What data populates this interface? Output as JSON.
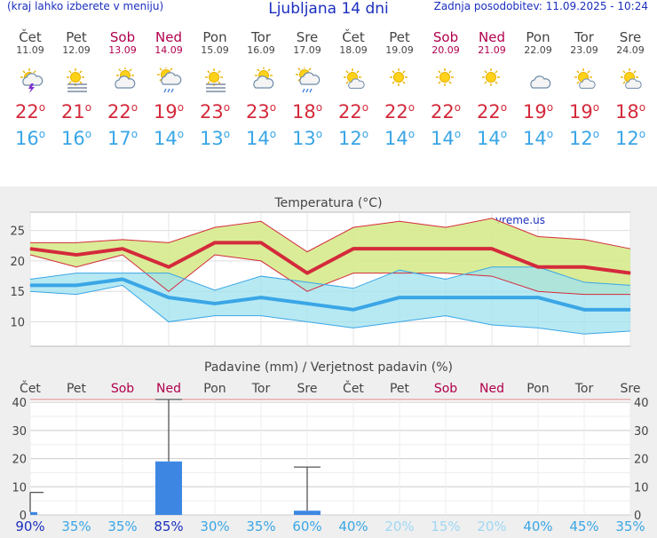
{
  "header": {
    "menu_hint": "(kraj lahko izberete v meniju)",
    "title": "Ljubljana 14 dni",
    "last_update": "Zadnja posodobitev: 11.09.2025 - 10:24"
  },
  "deg": "o",
  "days": [
    {
      "name": "Čet",
      "date": "11.09",
      "weekend": false,
      "icon": "thunderstorm-icon",
      "tmax": "22",
      "tmin": "16"
    },
    {
      "name": "Pet",
      "date": "12.09",
      "weekend": false,
      "icon": "sun-fog-icon",
      "tmax": "21",
      "tmin": "16"
    },
    {
      "name": "Sob",
      "date": "13.09",
      "weekend": true,
      "icon": "partly-cloudy-icon",
      "tmax": "22",
      "tmin": "17"
    },
    {
      "name": "Ned",
      "date": "14.09",
      "weekend": true,
      "icon": "rain-icon",
      "tmax": "19",
      "tmin": "14"
    },
    {
      "name": "Pon",
      "date": "15.09",
      "weekend": false,
      "icon": "sun-fog-icon",
      "tmax": "23",
      "tmin": "13"
    },
    {
      "name": "Tor",
      "date": "16.09",
      "weekend": false,
      "icon": "partly-cloudy-icon",
      "tmax": "23",
      "tmin": "14"
    },
    {
      "name": "Sre",
      "date": "17.09",
      "weekend": false,
      "icon": "rain-icon",
      "tmax": "18",
      "tmin": "13"
    },
    {
      "name": "Čet",
      "date": "18.09",
      "weekend": false,
      "icon": "sun-cloud-icon",
      "tmax": "22",
      "tmin": "12"
    },
    {
      "name": "Pet",
      "date": "19.09",
      "weekend": false,
      "icon": "sun-icon",
      "tmax": "22",
      "tmin": "14"
    },
    {
      "name": "Sob",
      "date": "20.09",
      "weekend": true,
      "icon": "sun-icon",
      "tmax": "22",
      "tmin": "14"
    },
    {
      "name": "Ned",
      "date": "21.09",
      "weekend": true,
      "icon": "sun-icon",
      "tmax": "22",
      "tmin": "14"
    },
    {
      "name": "Pon",
      "date": "22.09",
      "weekend": false,
      "icon": "cloud-icon",
      "tmax": "19",
      "tmin": "14"
    },
    {
      "name": "Tor",
      "date": "23.09",
      "weekend": false,
      "icon": "sun-cloud-icon",
      "tmax": "19",
      "tmin": "12"
    },
    {
      "name": "Sre",
      "date": "24.09",
      "weekend": false,
      "icon": "sun-cloud-icon",
      "tmax": "18",
      "tmin": "12"
    }
  ],
  "colors": {
    "max": "#d42a3b",
    "min": "#3aa6e6",
    "maxband": "#d6ea8c",
    "minband": "#9fe1ef",
    "overlap": "#8fd17c",
    "bar": "#3d87e3",
    "weekend": "#b0004c"
  },
  "chart_data": [
    {
      "type": "line",
      "title": "Temperatura (°C)",
      "watermark": "vreme.us",
      "ylim": [
        6,
        28
      ],
      "yticks": [
        10,
        15,
        20,
        25
      ],
      "categories": [
        "Čet",
        "Pet",
        "Sob",
        "Ned",
        "Pon",
        "Tor",
        "Sre",
        "Čet",
        "Pet",
        "Sob",
        "Ned",
        "Pon",
        "Tor",
        "Sre"
      ],
      "series": [
        {
          "name": "max",
          "values": [
            22,
            21,
            22,
            19,
            23,
            23,
            18,
            22,
            22,
            22,
            22,
            19,
            19,
            18
          ],
          "low": [
            21,
            19,
            21,
            15,
            21,
            20,
            15,
            18,
            18,
            18,
            17.5,
            15,
            14.5,
            14.5
          ],
          "high": [
            23,
            23,
            23.5,
            23,
            25.5,
            26.5,
            21.5,
            25.5,
            26.5,
            25.5,
            27,
            24,
            23.5,
            22
          ]
        },
        {
          "name": "min",
          "values": [
            16,
            16,
            17,
            14,
            13,
            14,
            13,
            12,
            14,
            14,
            14,
            14,
            12,
            12
          ],
          "low": [
            15,
            14.5,
            16,
            10,
            11,
            11,
            10,
            9,
            10,
            11,
            9.5,
            9,
            8,
            8.5
          ],
          "high": [
            17,
            18,
            18,
            18,
            15.2,
            17.5,
            16.5,
            15.5,
            18.5,
            17,
            19,
            19,
            16.5,
            16
          ]
        }
      ]
    },
    {
      "type": "bar",
      "title": "Padavine (mm) / Verjetnost padavin (%)",
      "ylim": [
        0,
        41
      ],
      "yticks": [
        0,
        10,
        20,
        30,
        40
      ],
      "categories": [
        "Čet",
        "Pet",
        "Sob",
        "Ned",
        "Pon",
        "Tor",
        "Sre",
        "Čet",
        "Pet",
        "Sob",
        "Ned",
        "Pon",
        "Tor",
        "Sre"
      ],
      "values": [
        1,
        0,
        0,
        19,
        0,
        0,
        1.5,
        0,
        0,
        0,
        0,
        0,
        0,
        0
      ],
      "error_high": [
        8,
        0,
        0,
        41,
        0,
        0,
        17,
        0,
        0,
        0,
        0,
        0,
        0,
        0
      ],
      "probability": [
        "90%",
        "35%",
        "35%",
        "85%",
        "30%",
        "35%",
        "60%",
        "40%",
        "20%",
        "15%",
        "20%",
        "40%",
        "45%",
        "35%"
      ]
    }
  ]
}
